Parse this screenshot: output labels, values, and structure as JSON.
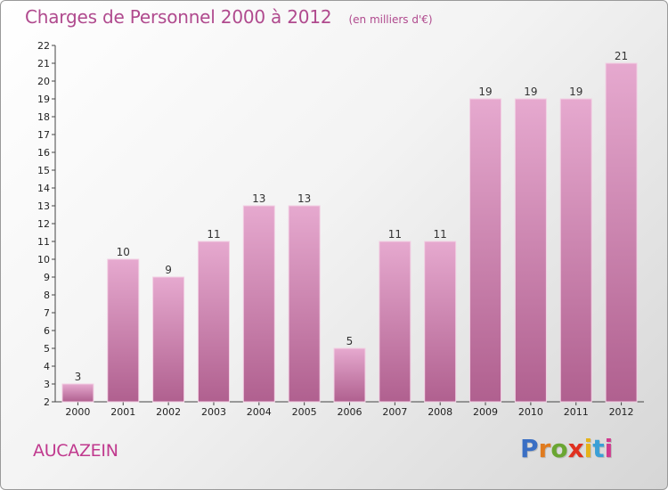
{
  "header": {
    "title": "Charges de Personnel 2000 à 2012",
    "subtitle": "(en milliers d'€)"
  },
  "footer": {
    "commune": "AUCAZEIN",
    "logo_text": "Proxiti"
  },
  "colors": {
    "title": "#b04a8e",
    "commune": "#c0398e",
    "bar_top": "#e6a9cf",
    "bar_bottom": "#b0608f",
    "logo": [
      "#3a6fc4",
      "#e07b1f",
      "#6aa632",
      "#e0301f",
      "#e5b21a",
      "#3a9fd6",
      "#d03a8f"
    ]
  },
  "chart_data": {
    "type": "bar",
    "categories": [
      "2000",
      "2001",
      "2002",
      "2003",
      "2004",
      "2005",
      "2006",
      "2007",
      "2008",
      "2009",
      "2010",
      "2011",
      "2012"
    ],
    "values": [
      3,
      10,
      9,
      11,
      13,
      13,
      5,
      11,
      11,
      19,
      19,
      19,
      21
    ],
    "data_labels": [
      "3",
      "10",
      "9",
      "11",
      "13",
      "13",
      "5",
      "11",
      "11",
      "19",
      "19",
      "19",
      "21"
    ],
    "ylim": [
      2,
      22
    ],
    "yticks": [
      "2",
      "3",
      "4",
      "5",
      "6",
      "7",
      "8",
      "9",
      "10",
      "11",
      "12",
      "13",
      "14",
      "15",
      "16",
      "17",
      "18",
      "19",
      "20",
      "21",
      "22"
    ],
    "grid": false
  }
}
